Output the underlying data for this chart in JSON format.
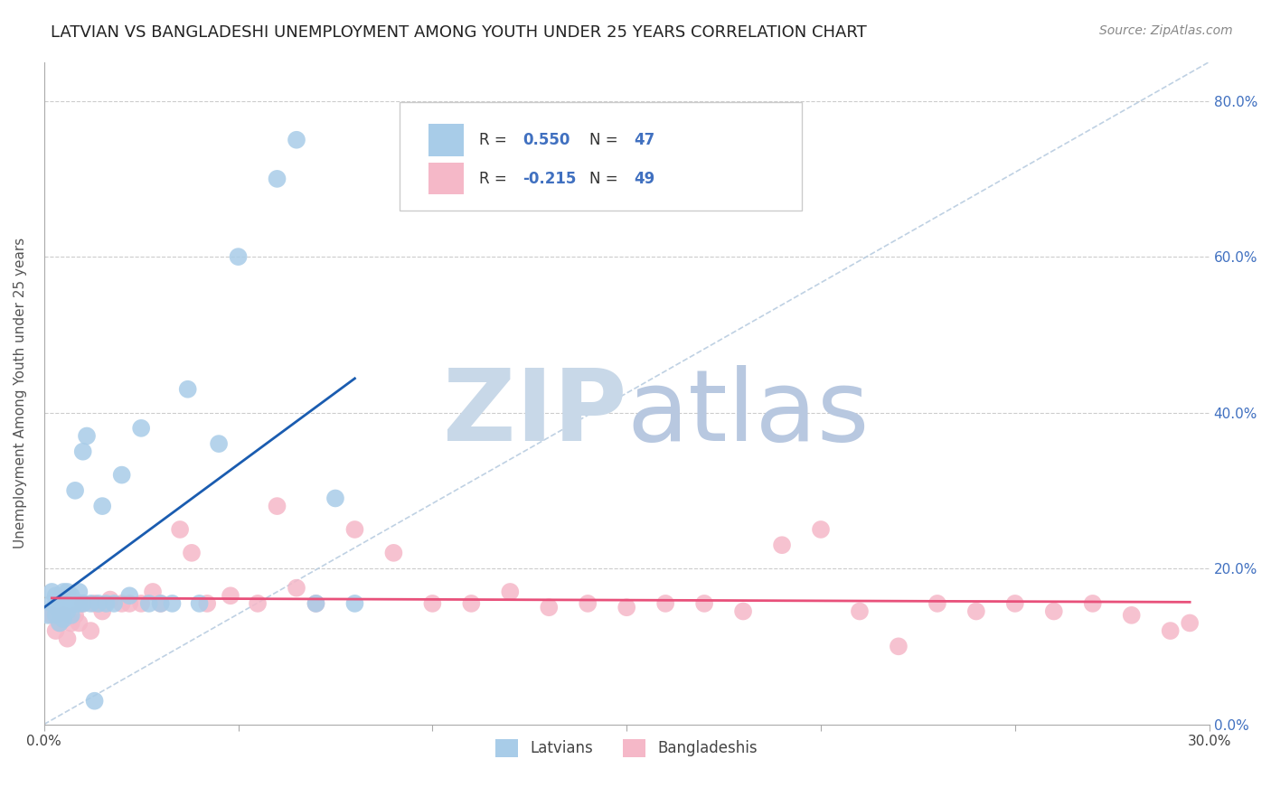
{
  "title": "LATVIAN VS BANGLADESHI UNEMPLOYMENT AMONG YOUTH UNDER 25 YEARS CORRELATION CHART",
  "source_text": "Source: ZipAtlas.com",
  "ylabel": "Unemployment Among Youth under 25 years",
  "xlim": [
    0.0,
    0.3
  ],
  "ylim": [
    0.0,
    0.85
  ],
  "xticks": [
    0.0,
    0.05,
    0.1,
    0.15,
    0.2,
    0.25,
    0.3
  ],
  "xtick_labels": [
    "0.0%",
    "",
    "",
    "",
    "",
    "",
    "30.0%"
  ],
  "ytick_labels_right": [
    "0.0%",
    "20.0%",
    "40.0%",
    "60.0%",
    "80.0%"
  ],
  "ytick_vals": [
    0.0,
    0.2,
    0.4,
    0.6,
    0.8
  ],
  "legend_r1": "0.550",
  "legend_n1": "47",
  "legend_r2": "-0.215",
  "legend_n2": "49",
  "latvian_color": "#a8cce8",
  "bangladeshi_color": "#f5b8c8",
  "trend_latvian_color": "#1a5cb0",
  "trend_bangladeshi_color": "#e8507a",
  "ref_line_color": "#b8cce0",
  "watermark_zip_color": "#c8d8e8",
  "watermark_atlas_color": "#b8c8e0",
  "background_color": "#ffffff",
  "grid_color": "#cccccc",
  "latvian_x": [
    0.001,
    0.002,
    0.002,
    0.003,
    0.003,
    0.003,
    0.004,
    0.004,
    0.004,
    0.005,
    0.005,
    0.005,
    0.005,
    0.006,
    0.006,
    0.006,
    0.007,
    0.007,
    0.007,
    0.008,
    0.008,
    0.009,
    0.009,
    0.01,
    0.01,
    0.011,
    0.012,
    0.013,
    0.014,
    0.015,
    0.016,
    0.018,
    0.02,
    0.022,
    0.025,
    0.027,
    0.03,
    0.033,
    0.037,
    0.04,
    0.045,
    0.05,
    0.06,
    0.065,
    0.07,
    0.075,
    0.08
  ],
  "latvian_y": [
    0.14,
    0.155,
    0.17,
    0.14,
    0.155,
    0.165,
    0.13,
    0.145,
    0.16,
    0.135,
    0.15,
    0.16,
    0.17,
    0.145,
    0.155,
    0.17,
    0.14,
    0.155,
    0.165,
    0.3,
    0.155,
    0.155,
    0.17,
    0.35,
    0.155,
    0.37,
    0.155,
    0.03,
    0.155,
    0.28,
    0.155,
    0.155,
    0.32,
    0.165,
    0.38,
    0.155,
    0.155,
    0.155,
    0.43,
    0.155,
    0.36,
    0.6,
    0.7,
    0.75,
    0.155,
    0.29,
    0.155
  ],
  "bangladeshi_x": [
    0.002,
    0.003,
    0.004,
    0.005,
    0.006,
    0.007,
    0.008,
    0.009,
    0.01,
    0.012,
    0.013,
    0.015,
    0.017,
    0.02,
    0.022,
    0.025,
    0.028,
    0.03,
    0.035,
    0.038,
    0.042,
    0.048,
    0.055,
    0.06,
    0.065,
    0.07,
    0.08,
    0.09,
    0.1,
    0.11,
    0.12,
    0.13,
    0.14,
    0.15,
    0.16,
    0.17,
    0.18,
    0.19,
    0.2,
    0.21,
    0.22,
    0.23,
    0.24,
    0.25,
    0.26,
    0.27,
    0.28,
    0.29,
    0.295
  ],
  "bangladeshi_y": [
    0.14,
    0.12,
    0.13,
    0.14,
    0.11,
    0.13,
    0.14,
    0.13,
    0.155,
    0.12,
    0.155,
    0.145,
    0.16,
    0.155,
    0.155,
    0.155,
    0.17,
    0.155,
    0.25,
    0.22,
    0.155,
    0.165,
    0.155,
    0.28,
    0.175,
    0.155,
    0.25,
    0.22,
    0.155,
    0.155,
    0.17,
    0.15,
    0.155,
    0.15,
    0.155,
    0.155,
    0.145,
    0.23,
    0.25,
    0.145,
    0.1,
    0.155,
    0.145,
    0.155,
    0.145,
    0.155,
    0.14,
    0.12,
    0.13
  ]
}
